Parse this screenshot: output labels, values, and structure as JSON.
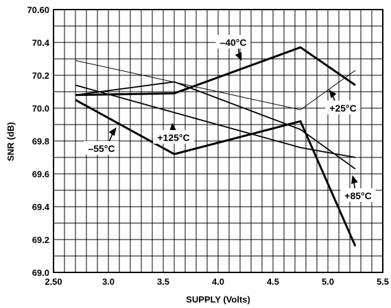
{
  "chart_data": {
    "type": "line",
    "xlabel": "SUPPLY (Volts)",
    "ylabel": "SNR (dB)",
    "xlim": [
      2.5,
      5.5
    ],
    "ylim": [
      69.0,
      70.6
    ],
    "xticks": [
      "2.50",
      "3.0",
      "3.5",
      "4.0",
      "4.5",
      "5.0",
      "5.5"
    ],
    "yticks": [
      "69.0",
      "69.2",
      "69.4",
      "69.6",
      "69.8",
      "70.0",
      "70.2",
      "70.4",
      "70.60"
    ],
    "grid": true,
    "series": [
      {
        "name": "–40°C",
        "x": [
          2.7,
          3.6,
          4.75,
          5.25
        ],
        "y": [
          70.08,
          70.09,
          70.37,
          70.14
        ],
        "weight": "heavy"
      },
      {
        "name": "+25°C",
        "x": [
          2.7,
          4.75,
          5.25
        ],
        "y": [
          70.29,
          69.99,
          70.23
        ],
        "weight": "light"
      },
      {
        "name": "+125°C",
        "x": [
          2.7,
          3.6,
          4.75,
          5.25
        ],
        "y": [
          70.08,
          70.16,
          69.87,
          69.63
        ],
        "weight": "medium"
      },
      {
        "name": "+85°C",
        "x": [
          2.7,
          4.75,
          5.25
        ],
        "y": [
          70.14,
          69.76,
          69.7
        ],
        "weight": "medium"
      },
      {
        "name": "–55°C",
        "x": [
          2.7,
          3.6,
          4.75,
          5.25
        ],
        "y": [
          70.05,
          69.72,
          69.92,
          69.16
        ],
        "weight": "heavy"
      }
    ],
    "annotations": [
      {
        "text": "–40°C",
        "series": 0
      },
      {
        "text": "+25°C",
        "series": 1
      },
      {
        "text": "+125°C",
        "series": 2
      },
      {
        "text": "+85°C",
        "series": 3
      },
      {
        "text": "–55°C",
        "series": 4
      }
    ]
  }
}
